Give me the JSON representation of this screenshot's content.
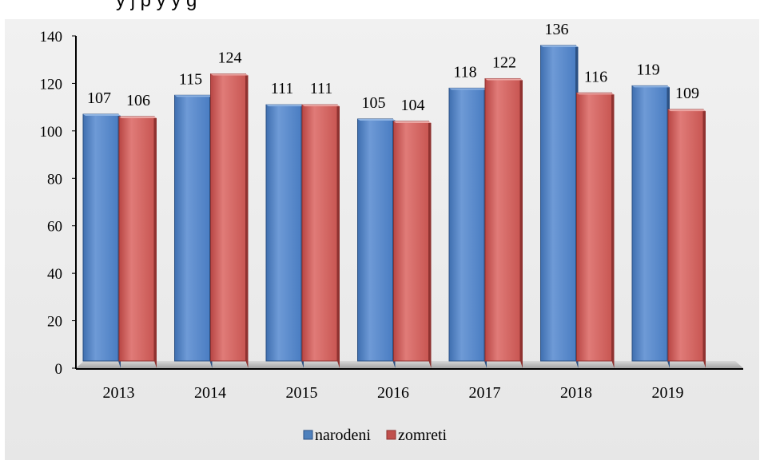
{
  "caption_fragment": "y j p          y           y           g",
  "chart_data": {
    "type": "bar",
    "categories": [
      "2013",
      "2014",
      "2015",
      "2016",
      "2017",
      "2018",
      "2019"
    ],
    "series": [
      {
        "name": "narodeni",
        "values": [
          107,
          115,
          111,
          105,
          118,
          136,
          119
        ],
        "color": "#4f81bd"
      },
      {
        "name": "zomreti",
        "values": [
          106,
          124,
          111,
          104,
          122,
          116,
          109
        ],
        "color": "#c0504d"
      }
    ],
    "yticks": [
      "0",
      "20",
      "40",
      "60",
      "80",
      "100",
      "120",
      "140"
    ],
    "ylim": [
      0,
      140
    ],
    "grid": false,
    "legend_position": "bottom",
    "style": "3d-columns"
  }
}
